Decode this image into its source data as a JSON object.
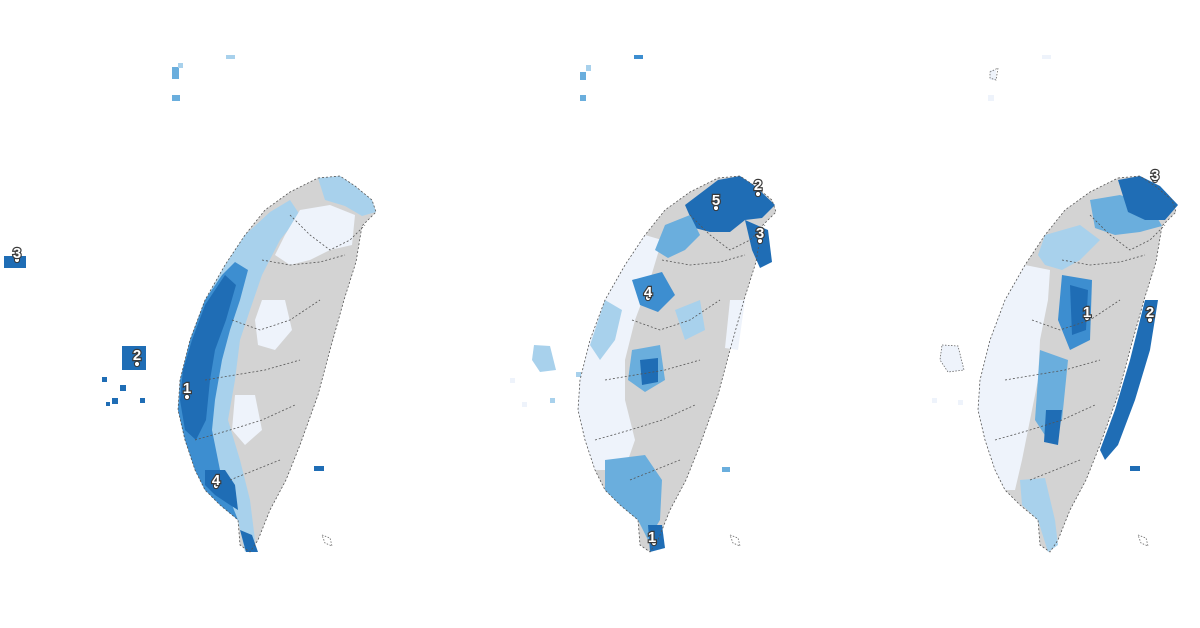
{
  "maps": [
    {
      "markers": [
        "1",
        "2",
        "3",
        "4"
      ]
    },
    {
      "markers": [
        "1",
        "2",
        "3",
        "4",
        "5"
      ]
    },
    {
      "markers": [
        "1",
        "2",
        "3"
      ]
    }
  ],
  "colors": {
    "intensity_very_high": "#1f6db5",
    "intensity_high": "#3d8ed0",
    "intensity_mid": "#6aaedd",
    "intensity_low": "#a8d1ec",
    "intensity_very_low": "#eef3fb",
    "no_data": "#d3d3d3",
    "boundary": "#555555"
  }
}
